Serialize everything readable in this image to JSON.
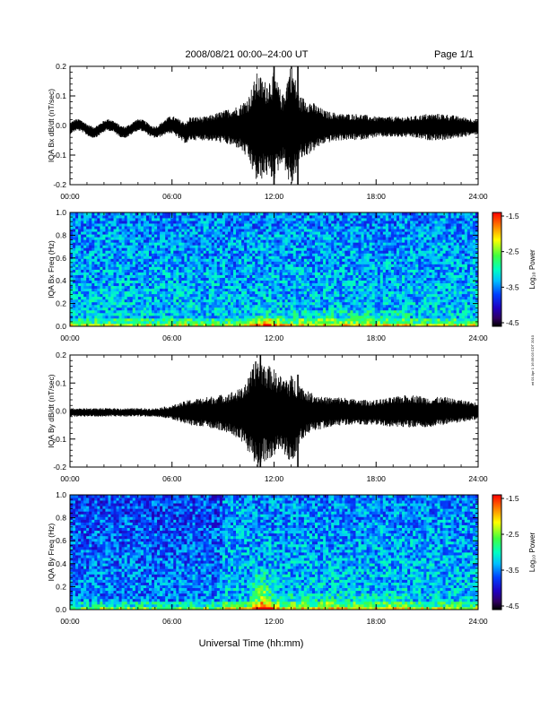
{
  "header": {
    "title": "2008/08/21  00:00–24:00 UT",
    "page": "Page 1/1"
  },
  "footer": {
    "xlabel": "Universal Time (hh:mm)",
    "side_note": "wt 01 Apr 1 16:35:03 CDT 2010"
  },
  "time_ticks": [
    "00:00",
    "06:00",
    "12:00",
    "18:00",
    "24:00"
  ],
  "colorbar": {
    "label": "Log₁₀ Power",
    "ticks": [
      "-1.5",
      "-2.5",
      "-3.5",
      "-4.5"
    ],
    "colors": [
      "#ff0000",
      "#ffa000",
      "#ffff00",
      "#80ff40",
      "#00ff80",
      "#00ffff",
      "#0080ff",
      "#0000ff",
      "#400080",
      "#000000"
    ]
  },
  "chart_data": [
    {
      "type": "line",
      "ylabel": "IQA Bx dB/dt (nT/sec)",
      "x_unit": "hours UT",
      "xlim": [
        0,
        24
      ],
      "ylim": [
        -0.2,
        0.2
      ],
      "yticks": [
        "0.2",
        "0.1",
        "0.0",
        "-0.1",
        "-0.2"
      ],
      "x": [
        0,
        1,
        2,
        3,
        4,
        5,
        6,
        7,
        8,
        9,
        10,
        10.5,
        11,
        11.5,
        12,
        12.5,
        13,
        13.5,
        14,
        15,
        16,
        17,
        18,
        19,
        20,
        21,
        22,
        23,
        24
      ],
      "envelope_upper": [
        0.01,
        0.01,
        0.01,
        0.01,
        0.01,
        0.01,
        0.02,
        0.03,
        0.03,
        0.05,
        0.07,
        0.1,
        0.18,
        0.15,
        0.18,
        0.1,
        0.22,
        0.1,
        0.09,
        0.05,
        0.04,
        0.04,
        0.03,
        0.03,
        0.03,
        0.04,
        0.04,
        0.03,
        0.02
      ],
      "envelope_lower": [
        -0.03,
        -0.03,
        -0.03,
        -0.03,
        -0.03,
        -0.03,
        -0.04,
        -0.05,
        -0.05,
        -0.06,
        -0.08,
        -0.12,
        -0.2,
        -0.17,
        -0.19,
        -0.12,
        -0.22,
        -0.12,
        -0.1,
        -0.06,
        -0.05,
        -0.05,
        -0.04,
        -0.04,
        -0.04,
        -0.05,
        -0.05,
        -0.04,
        -0.03
      ]
    },
    {
      "type": "heatmap",
      "ylabel": "IQA Bx Freq (Hz)",
      "x_unit": "hours UT",
      "xlim": [
        0,
        24
      ],
      "ylim": [
        0,
        1.0
      ],
      "yticks": [
        "1.0",
        "0.8",
        "0.6",
        "0.4",
        "0.2",
        "0.0"
      ],
      "zlim": [
        -4.5,
        -1.5
      ],
      "enhancement_hours": [
        10.5,
        12.5
      ],
      "enhancement_max_freq": 0.15
    },
    {
      "type": "line",
      "ylabel": "IQA By dB/dt (nT/sec)",
      "x_unit": "hours UT",
      "xlim": [
        0,
        24
      ],
      "ylim": [
        -0.2,
        0.2
      ],
      "yticks": [
        "0.2",
        "0.1",
        "0.0",
        "-0.1",
        "-0.2"
      ],
      "x": [
        0,
        1,
        2,
        3,
        4,
        5,
        6,
        7,
        8,
        9,
        10,
        10.5,
        11,
        11.5,
        12,
        12.5,
        13,
        13.5,
        14,
        15,
        16,
        17,
        18,
        19,
        20,
        21,
        22,
        23,
        24
      ],
      "envelope_upper": [
        0.01,
        0.01,
        0.01,
        0.01,
        0.01,
        0.01,
        0.02,
        0.04,
        0.05,
        0.06,
        0.08,
        0.12,
        0.2,
        0.17,
        0.15,
        0.12,
        0.13,
        0.1,
        0.07,
        0.05,
        0.05,
        0.04,
        0.04,
        0.05,
        0.06,
        0.05,
        0.05,
        0.04,
        0.03
      ],
      "envelope_lower": [
        -0.02,
        -0.02,
        -0.02,
        -0.02,
        -0.02,
        -0.02,
        -0.03,
        -0.05,
        -0.06,
        -0.07,
        -0.1,
        -0.15,
        -0.21,
        -0.18,
        -0.17,
        -0.14,
        -0.2,
        -0.12,
        -0.08,
        -0.06,
        -0.05,
        -0.05,
        -0.05,
        -0.06,
        -0.06,
        -0.06,
        -0.05,
        -0.04,
        -0.03
      ]
    },
    {
      "type": "heatmap",
      "ylabel": "IQA By Freq (Hz)",
      "x_unit": "hours UT",
      "xlim": [
        0,
        24
      ],
      "ylim": [
        0,
        1.0
      ],
      "yticks": [
        "1.0",
        "0.8",
        "0.6",
        "0.4",
        "0.2",
        "0.0"
      ],
      "zlim": [
        -4.5,
        -1.5
      ],
      "enhancement_hours": [
        10.3,
        12.3
      ],
      "enhancement_max_freq": 0.4
    }
  ]
}
